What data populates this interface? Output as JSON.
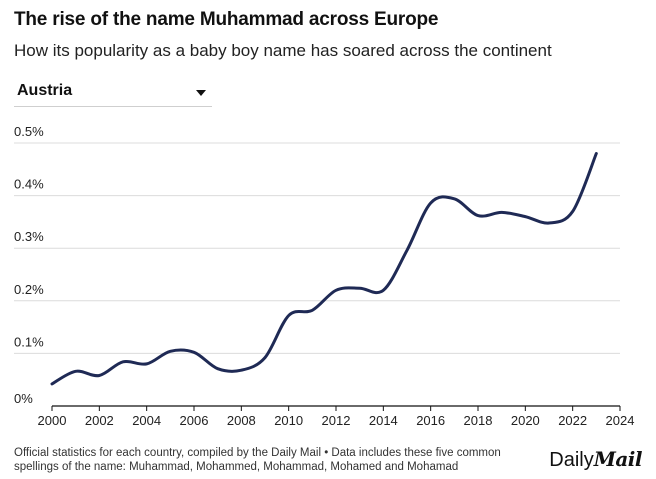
{
  "header": {
    "title": "The rise of the name Muhammad across Europe",
    "subtitle": "How its popularity as a baby boy name has soared across the continent"
  },
  "selector": {
    "selected": "Austria"
  },
  "footer": {
    "note_line1": "Official statistics for each country, compiled by the Daily Mail • Data includes these five common",
    "note_line2": "spellings of the name: Muhammad, Mohammed, Mohammad, Mohamed and Mohamad",
    "logo_part1": "Daily",
    "logo_part2": "Mail"
  },
  "colors": {
    "line": "#1f2a55",
    "grid": "#dcdcdc",
    "axis": "#111111"
  },
  "chart_data": {
    "type": "line",
    "title": "The rise of the name Muhammad across Europe",
    "xlabel": "",
    "ylabel": "",
    "xlim": [
      2000,
      2024
    ],
    "ylim": [
      0,
      0.5
    ],
    "x_ticks": [
      2000,
      2002,
      2004,
      2006,
      2008,
      2010,
      2012,
      2014,
      2016,
      2018,
      2020,
      2022,
      2024
    ],
    "y_ticks": [
      0,
      0.1,
      0.2,
      0.3,
      0.4,
      0.5
    ],
    "y_tick_labels": [
      "0%",
      "0.1%",
      "0.2%",
      "0.3%",
      "0.4%",
      "0.5%"
    ],
    "series": [
      {
        "name": "Austria",
        "x": [
          2000,
          2001,
          2002,
          2003,
          2004,
          2005,
          2006,
          2007,
          2008,
          2009,
          2010,
          2011,
          2012,
          2013,
          2014,
          2015,
          2016,
          2017,
          2018,
          2019,
          2020,
          2021,
          2022,
          2023
        ],
        "values": [
          0.042,
          0.066,
          0.058,
          0.084,
          0.08,
          0.104,
          0.102,
          0.071,
          0.068,
          0.092,
          0.172,
          0.182,
          0.22,
          0.224,
          0.22,
          0.296,
          0.386,
          0.394,
          0.362,
          0.368,
          0.36,
          0.348,
          0.37,
          0.48
        ]
      }
    ]
  }
}
